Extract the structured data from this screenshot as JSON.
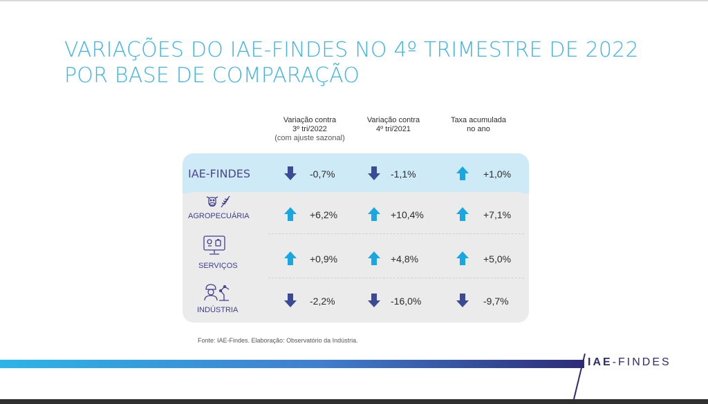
{
  "title_line1": "VARIAÇÕES DO IAE-FINDES NO 4º TRIMESTRE DE 2022",
  "title_line2": "POR BASE DE COMPARAÇÃO",
  "columns": [
    {
      "line1": "Variação contra",
      "line2": "3º tri/2022",
      "line3": "(com ajuste sazonal)"
    },
    {
      "line1": "Variação contra",
      "line2": "4º tri/2021",
      "line3": ""
    },
    {
      "line1": "Taxa acumulada",
      "line2": "no ano",
      "line3": ""
    }
  ],
  "rows": [
    {
      "label": "IAE-FINDES",
      "icon": "",
      "values": [
        "-0,7%",
        "-1,1%",
        "+1,0%"
      ],
      "directions": [
        "down",
        "down",
        "up"
      ]
    },
    {
      "label": "AGROPECUÁRIA",
      "icon": "cow-wheat-icon",
      "values": [
        "+6,2%",
        "+10,4%",
        "+7,1%"
      ],
      "directions": [
        "up",
        "up",
        "up"
      ]
    },
    {
      "label": "SERVIÇOS",
      "icon": "monitor-icon",
      "values": [
        "+0,9%",
        "+4,8%",
        "+5,0%"
      ],
      "directions": [
        "up",
        "up",
        "up"
      ]
    },
    {
      "label": "INDÚSTRIA",
      "icon": "worker-robot-icon",
      "values": [
        "-2,2%",
        "-16,0%",
        "-9,7%"
      ],
      "directions": [
        "down",
        "down",
        "down"
      ]
    }
  ],
  "source": "Fonte: IAE-Findes. Elaboração: Observatório da Indústria.",
  "brand": {
    "part1": "IAE",
    "part2": "-FINDES"
  },
  "colors": {
    "title": "#3fb4e3",
    "up_arrow": "#1aa6e0",
    "down_arrow": "#3a4a95",
    "label": "#3f3d8f",
    "highlight_band": "#cfeaf7",
    "card": "#ebebeb"
  }
}
